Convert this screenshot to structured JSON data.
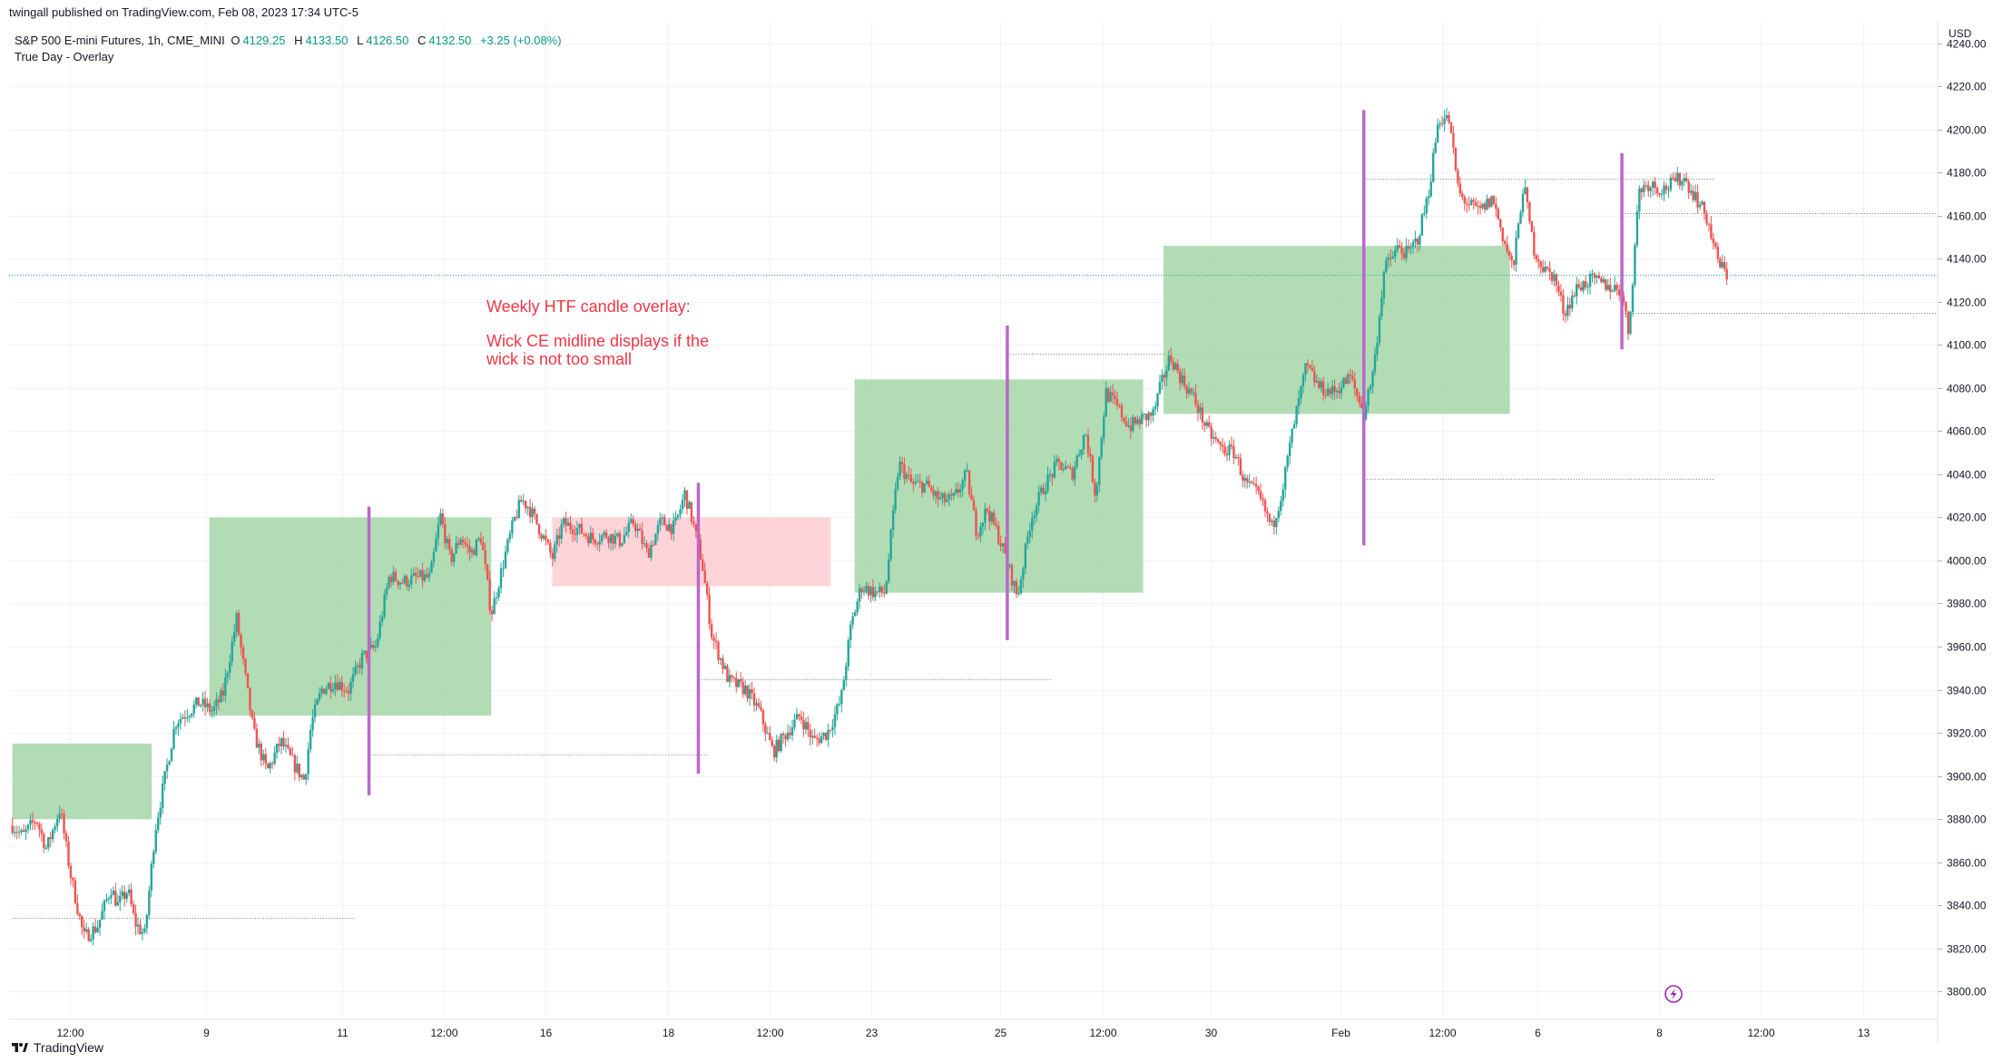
{
  "header": {
    "published_by": "twingall published on TradingView.com, Feb 08, 2023 17:34 UTC-5"
  },
  "legend": {
    "symbol": "S&P 500 E-mini Futures, 1h, CME_MINI",
    "open_label": "O",
    "open": "4129.25",
    "high_label": "H",
    "high": "4133.50",
    "low_label": "L",
    "low": "4126.50",
    "close_label": "C",
    "close": "4132.50",
    "change": "+3.25 (+0.08%)",
    "indicator": "True Day - Overlay"
  },
  "annotation": {
    "line1": "Weekly HTF candle overlay:",
    "line2": "Wick CE midline displays if the",
    "line3": "wick is not too small"
  },
  "footer": {
    "brand": "TradingView"
  },
  "colors": {
    "bull_candle": "#26a69a",
    "bear_candle": "#ef5350",
    "bull_box": "#a5d6a7",
    "bear_box": "#ffcdd2",
    "wick_marker": "#ba68c8",
    "annotation": "#f23645",
    "last_price_line": "#26a69a"
  },
  "chart_data": {
    "type": "candlestick",
    "currency": "USD",
    "y_ticks": [
      3800,
      3820,
      3840,
      3860,
      3880,
      3900,
      3920,
      3940,
      3960,
      3980,
      4000,
      4020,
      4040,
      4060,
      4080,
      4100,
      4120,
      4140,
      4160,
      4180,
      4200,
      4220,
      4240
    ],
    "y_tick_labels": [
      "3800.00",
      "3820.00",
      "3840.00",
      "3860.00",
      "3880.00",
      "3900.00",
      "3920.00",
      "3940.00",
      "3960.00",
      "3980.00",
      "4000.00",
      "4020.00",
      "4040.00",
      "4060.00",
      "4080.00",
      "4100.00",
      "4120.00",
      "4140.00",
      "4160.00",
      "4180.00",
      "4200.00",
      "4220.00",
      "4240.00"
    ],
    "ylim": [
      3787,
      4250
    ],
    "x_ticks": [
      {
        "label": "12:00",
        "t": 1.5
      },
      {
        "label": "9",
        "t": 3.5
      },
      {
        "label": "11",
        "t": 5.5
      },
      {
        "label": "12:00",
        "t": 7.0
      },
      {
        "label": "16",
        "t": 8.5
      },
      {
        "label": "18",
        "t": 10.3
      },
      {
        "label": "12:00",
        "t": 11.8
      },
      {
        "label": "23",
        "t": 13.3
      },
      {
        "label": "25",
        "t": 15.2
      },
      {
        "label": "12:00",
        "t": 16.7
      },
      {
        "label": "30",
        "t": 18.3
      },
      {
        "label": "Feb",
        "t": 20.2
      },
      {
        "label": "12:00",
        "t": 21.7
      },
      {
        "label": "6",
        "t": 23.1
      },
      {
        "label": "8",
        "t": 24.9
      },
      {
        "label": "12:00",
        "t": 26.4
      },
      {
        "label": "13",
        "t": 27.9
      }
    ],
    "xlim": [
      0.6,
      29.0
    ],
    "weekly_boxes": [
      {
        "t0": 0.65,
        "t1": 2.7,
        "open": 3880,
        "close": 3915,
        "dir": "up"
      },
      {
        "t0": 3.55,
        "t1": 7.7,
        "open": 3928,
        "close": 4020,
        "dir": "up"
      },
      {
        "t0": 8.6,
        "t1": 12.7,
        "open": 4020,
        "close": 3988,
        "dir": "down"
      },
      {
        "t0": 13.05,
        "t1": 17.3,
        "open": 3985,
        "close": 4084,
        "dir": "up"
      },
      {
        "t0": 17.6,
        "t1": 22.7,
        "open": 4068,
        "close": 4146,
        "dir": "up"
      }
    ],
    "wick_markers": [
      {
        "t": 5.9,
        "low": 3891,
        "high": 4025
      },
      {
        "t": 10.75,
        "low": 3901,
        "high": 4036
      },
      {
        "t": 15.3,
        "low": 3963,
        "high": 4109
      },
      {
        "t": 20.55,
        "low": 4007,
        "high": 4209
      },
      {
        "t": 24.35,
        "low": 4098,
        "high": 4189
      }
    ],
    "ce_lines": [
      {
        "t0": 0.65,
        "t1": 5.7,
        "y": 3834
      },
      {
        "t0": 5.9,
        "t1": 10.9,
        "y": 3910
      },
      {
        "t0": 10.75,
        "t1": 15.95,
        "y": 3945
      },
      {
        "t0": 15.3,
        "t1": 20.6,
        "y": 4096
      },
      {
        "t0": 20.55,
        "t1": 25.7,
        "y": 4177
      },
      {
        "t0": 20.55,
        "t1": 25.7,
        "y": 4038
      },
      {
        "t0": 24.35,
        "t1": 29.0,
        "y": 4161
      },
      {
        "t0": 24.35,
        "t1": 29.0,
        "y": 4115
      }
    ],
    "last_price": 4132.5,
    "anchors": [
      [
        0.65,
        3877
      ],
      [
        0.8,
        3872
      ],
      [
        1.0,
        3880
      ],
      [
        1.15,
        3866
      ],
      [
        1.35,
        3885
      ],
      [
        1.5,
        3855
      ],
      [
        1.7,
        3825
      ],
      [
        1.9,
        3830
      ],
      [
        2.1,
        3848
      ],
      [
        2.2,
        3840
      ],
      [
        2.35,
        3847
      ],
      [
        2.45,
        3832
      ],
      [
        2.6,
        3826
      ],
      [
        2.75,
        3875
      ],
      [
        2.9,
        3900
      ],
      [
        3.05,
        3925
      ],
      [
        3.2,
        3929
      ],
      [
        3.4,
        3934
      ],
      [
        3.6,
        3930
      ],
      [
        3.75,
        3938
      ],
      [
        3.95,
        3973
      ],
      [
        4.2,
        3920
      ],
      [
        4.4,
        3902
      ],
      [
        4.6,
        3916
      ],
      [
        4.8,
        3905
      ],
      [
        4.95,
        3898
      ],
      [
        5.05,
        3924
      ],
      [
        5.2,
        3940
      ],
      [
        5.4,
        3944
      ],
      [
        5.6,
        3940
      ],
      [
        5.8,
        3955
      ],
      [
        6.0,
        3960
      ],
      [
        6.2,
        3993
      ],
      [
        6.4,
        3990
      ],
      [
        6.6,
        3992
      ],
      [
        6.8,
        3992
      ],
      [
        6.95,
        4021
      ],
      [
        7.1,
        4000
      ],
      [
        7.25,
        4011
      ],
      [
        7.4,
        4003
      ],
      [
        7.55,
        4011
      ],
      [
        7.7,
        3975
      ],
      [
        7.9,
        4002
      ],
      [
        8.05,
        4020
      ],
      [
        8.15,
        4028
      ],
      [
        8.25,
        4025
      ],
      [
        8.45,
        4012
      ],
      [
        8.6,
        4001
      ],
      [
        8.75,
        4017
      ],
      [
        8.95,
        4015
      ],
      [
        9.2,
        4010
      ],
      [
        9.4,
        4012
      ],
      [
        9.6,
        4009
      ],
      [
        9.8,
        4018
      ],
      [
        10.0,
        4003
      ],
      [
        10.2,
        4018
      ],
      [
        10.4,
        4015
      ],
      [
        10.55,
        4031
      ],
      [
        10.65,
        4020
      ],
      [
        10.8,
        4000
      ],
      [
        10.95,
        3965
      ],
      [
        11.2,
        3944
      ],
      [
        11.45,
        3940
      ],
      [
        11.65,
        3930
      ],
      [
        11.85,
        3911
      ],
      [
        12.05,
        3920
      ],
      [
        12.25,
        3928
      ],
      [
        12.45,
        3916
      ],
      [
        12.65,
        3920
      ],
      [
        12.85,
        3935
      ],
      [
        13.0,
        3970
      ],
      [
        13.15,
        3988
      ],
      [
        13.35,
        3985
      ],
      [
        13.5,
        3985
      ],
      [
        13.7,
        4045
      ],
      [
        13.9,
        4035
      ],
      [
        14.1,
        4035
      ],
      [
        14.3,
        4028
      ],
      [
        14.5,
        4028
      ],
      [
        14.7,
        4040
      ],
      [
        14.85,
        4013
      ],
      [
        15.0,
        4024
      ],
      [
        15.15,
        4013
      ],
      [
        15.25,
        4004
      ],
      [
        15.45,
        3983
      ],
      [
        15.65,
        4020
      ],
      [
        15.85,
        4035
      ],
      [
        16.05,
        4045
      ],
      [
        16.25,
        4040
      ],
      [
        16.45,
        4060
      ],
      [
        16.6,
        4030
      ],
      [
        16.75,
        4078
      ],
      [
        16.9,
        4072
      ],
      [
        17.1,
        4062
      ],
      [
        17.3,
        4066
      ],
      [
        17.45,
        4068
      ],
      [
        17.55,
        4080
      ],
      [
        17.7,
        4095
      ],
      [
        17.85,
        4085
      ],
      [
        18.05,
        4075
      ],
      [
        18.25,
        4060
      ],
      [
        18.45,
        4052
      ],
      [
        18.65,
        4050
      ],
      [
        18.8,
        4036
      ],
      [
        19.0,
        4030
      ],
      [
        19.2,
        4015
      ],
      [
        19.35,
        4033
      ],
      [
        19.5,
        4060
      ],
      [
        19.7,
        4090
      ],
      [
        19.9,
        4080
      ],
      [
        20.1,
        4078
      ],
      [
        20.35,
        4085
      ],
      [
        20.55,
        4068
      ],
      [
        20.7,
        4090
      ],
      [
        20.85,
        4135
      ],
      [
        21.05,
        4145
      ],
      [
        21.2,
        4142
      ],
      [
        21.35,
        4150
      ],
      [
        21.5,
        4170
      ],
      [
        21.65,
        4205
      ],
      [
        21.8,
        4205
      ],
      [
        21.95,
        4170
      ],
      [
        22.1,
        4165
      ],
      [
        22.25,
        4162
      ],
      [
        22.45,
        4168
      ],
      [
        22.6,
        4150
      ],
      [
        22.75,
        4135
      ],
      [
        22.9,
        4175
      ],
      [
        23.05,
        4145
      ],
      [
        23.2,
        4135
      ],
      [
        23.35,
        4132
      ],
      [
        23.5,
        4115
      ],
      [
        23.7,
        4127
      ],
      [
        23.9,
        4130
      ],
      [
        24.1,
        4128
      ],
      [
        24.35,
        4125
      ],
      [
        24.45,
        4105
      ],
      [
        24.6,
        4172
      ],
      [
        24.75,
        4175
      ],
      [
        24.95,
        4172
      ],
      [
        25.1,
        4175
      ],
      [
        25.25,
        4178
      ],
      [
        25.45,
        4168
      ],
      [
        25.6,
        4159
      ],
      [
        25.75,
        4140
      ],
      [
        25.9,
        4132
      ]
    ]
  }
}
